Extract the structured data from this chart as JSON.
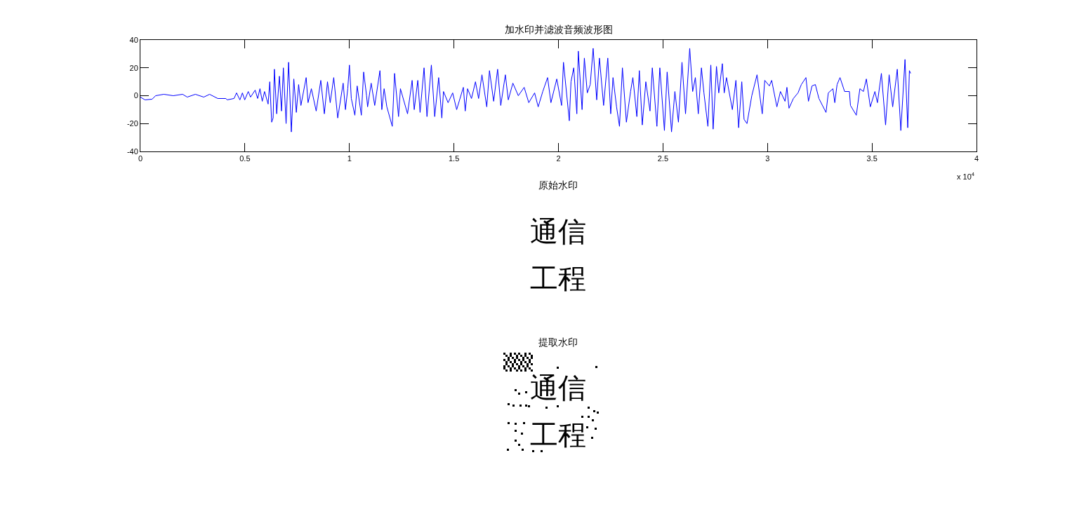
{
  "chart_data": [
    {
      "type": "line",
      "title": "加水印并滤波音频波形图",
      "color": "#0000ff",
      "x": [
        0,
        0.022,
        0.056,
        0.073,
        0.112,
        0.157,
        0.202,
        0.224,
        0.263,
        0.303,
        0.331,
        0.37,
        0.409,
        0.415,
        0.448,
        0.46,
        0.476,
        0.488,
        0.499,
        0.516,
        0.527,
        0.549,
        0.561,
        0.572,
        0.583,
        0.594,
        0.611,
        0.619,
        0.628,
        0.635,
        0.641,
        0.652,
        0.665,
        0.675,
        0.684,
        0.697,
        0.709,
        0.722,
        0.734,
        0.746,
        0.757,
        0.768,
        0.793,
        0.802,
        0.818,
        0.841,
        0.863,
        0.88,
        0.895,
        0.908,
        0.925,
        0.944,
        0.97,
        0.981,
        0.992,
        1.0,
        1.009,
        1.026,
        1.037,
        1.057,
        1.068,
        1.082,
        1.087,
        1.104,
        1.121,
        1.146,
        1.155,
        1.166,
        1.179,
        1.205,
        1.216,
        1.235,
        1.244,
        1.278,
        1.3,
        1.31,
        1.327,
        1.338,
        1.357,
        1.371,
        1.392,
        1.408,
        1.427,
        1.442,
        1.45,
        1.472,
        1.494,
        1.513,
        1.545,
        1.554,
        1.565,
        1.584,
        1.603,
        1.618,
        1.634,
        1.657,
        1.67,
        1.69,
        1.709,
        1.724,
        1.746,
        1.76,
        1.782,
        1.808,
        1.836,
        1.858,
        1.886,
        1.903,
        1.925,
        1.948,
        1.964,
        1.992,
        2.015,
        2.024,
        2.052,
        2.06,
        2.073,
        2.088,
        2.095,
        2.113,
        2.124,
        2.138,
        2.152,
        2.166,
        2.183,
        2.196,
        2.216,
        2.236,
        2.25,
        2.261,
        2.278,
        2.292,
        2.306,
        2.325,
        2.345,
        2.356,
        2.375,
        2.387,
        2.401,
        2.418,
        2.438,
        2.449,
        2.471,
        2.485,
        2.507,
        2.52,
        2.541,
        2.557,
        2.574,
        2.591,
        2.608,
        2.628,
        2.642,
        2.655,
        2.669,
        2.684,
        2.696,
        2.715,
        2.729,
        2.74,
        2.756,
        2.767,
        2.784,
        2.793,
        2.804,
        2.832,
        2.849,
        2.862,
        2.877,
        2.888,
        2.902,
        2.925,
        2.95,
        2.975,
        2.987,
        3.009,
        3.02,
        3.045,
        3.062,
        3.084,
        3.093,
        3.103,
        3.124,
        3.146,
        3.162,
        3.184,
        3.196,
        3.213,
        3.229,
        3.246,
        3.28,
        3.291,
        3.313,
        3.322,
        3.333,
        3.347,
        3.369,
        3.392,
        3.397,
        3.425,
        3.442,
        3.459,
        3.473,
        3.492,
        3.514,
        3.526,
        3.545,
        3.565,
        3.582,
        3.599,
        3.621,
        3.638,
        3.658,
        3.671,
        3.679,
        3.685
      ],
      "values": [
        -1,
        -3,
        -2.5,
        0,
        1,
        0,
        1,
        -1,
        1,
        -1,
        1,
        -2,
        -2,
        -3,
        -2,
        2,
        -3,
        2,
        -3,
        3,
        -1,
        4,
        -2,
        5,
        -4,
        3,
        -6,
        10,
        -19,
        -16,
        19,
        -13,
        14,
        -11,
        20,
        -20,
        24,
        -26,
        12,
        -12,
        8,
        -7,
        13,
        -5,
        5,
        -11,
        11,
        -13,
        10,
        -5,
        13,
        -16,
        9,
        -10,
        5,
        22,
        -2,
        -14,
        7,
        -14,
        17,
        0,
        -8,
        9,
        -7,
        18,
        -10,
        5,
        -8,
        -22,
        16,
        -15,
        5,
        -13,
        11,
        -10,
        11,
        -12,
        20,
        -15,
        22,
        -15,
        13,
        -16,
        3,
        -5,
        2,
        -10,
        6,
        -11,
        5,
        -2,
        10,
        -2,
        15,
        -8,
        18,
        -4,
        19,
        -7,
        15,
        -3,
        9,
        0,
        6,
        -5,
        2,
        -8,
        3,
        13,
        -5,
        12,
        -7,
        24,
        -18,
        10,
        20,
        -13,
        32,
        -10,
        27,
        2,
        8,
        34,
        -3,
        27,
        -7,
        27,
        -13,
        13,
        -8,
        -22,
        20,
        -19,
        3,
        13,
        -15,
        18,
        -21,
        10,
        -11,
        20,
        -22,
        20,
        -25,
        17,
        -26,
        3,
        -19,
        24,
        -13,
        34,
        3,
        13,
        -13,
        20,
        2,
        -22,
        22,
        -24,
        21,
        2,
        23,
        2,
        13,
        -10,
        11,
        -23,
        10,
        -17,
        -20,
        0,
        15,
        -13,
        11,
        7,
        11,
        -8,
        3,
        -4,
        6,
        -9,
        -2,
        2,
        8,
        13,
        -4,
        7,
        8,
        -2,
        -12,
        2,
        5,
        -5,
        8,
        13,
        3,
        3,
        -7,
        -14,
        5,
        3,
        12,
        -8,
        3,
        -5,
        16,
        -21,
        15,
        -8,
        19,
        -25,
        26,
        -23,
        18,
        16
      ],
      "xlim": [
        0,
        4
      ],
      "ylim": [
        -40,
        40
      ],
      "xticks": [
        0,
        0.5,
        1,
        1.5,
        2,
        2.5,
        3,
        3.5,
        4
      ],
      "yticks": [
        -40,
        -20,
        0,
        20,
        40
      ],
      "annotations": [
        "x 10$^{4}$"
      ]
    },
    {
      "type": "other",
      "title": "原始水印",
      "annotations": [
        "通信",
        "工程"
      ]
    },
    {
      "type": "other",
      "title": "提取水印",
      "annotations": [
        "通信",
        "工程"
      ]
    }
  ]
}
